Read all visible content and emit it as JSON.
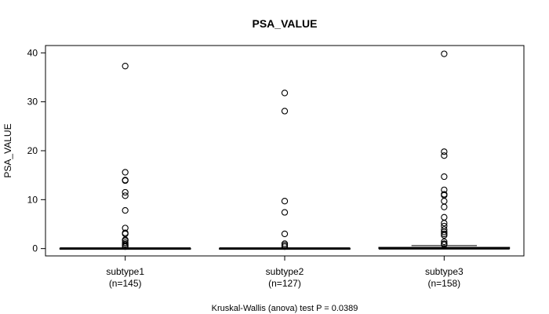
{
  "chart_data": {
    "type": "box",
    "title": "PSA_VALUE",
    "ylabel": "PSA_VALUE",
    "xlabel": "",
    "ylim": [
      -1.5,
      41.5
    ],
    "yticks": [
      0,
      10,
      20,
      30,
      40
    ],
    "ytick_labels": [
      "0",
      "10",
      "20",
      "30",
      "40"
    ],
    "footer": "Kruskal-Wallis (anova) test P = 0.0389",
    "groups": [
      {
        "name": "subtype1",
        "n_label": "(n=145)",
        "box": {
          "q1": 0.0,
          "median": 0.0,
          "q3": 0.05,
          "whisker_low": 0.0,
          "whisker_high": 0.1
        },
        "outliers": [
          37.3,
          15.6,
          14.0,
          13.9,
          11.5,
          10.8,
          7.8,
          4.2,
          3.2,
          3.0,
          1.8,
          1.6,
          1.2,
          0.9,
          0.6,
          0.4
        ]
      },
      {
        "name": "subtype2",
        "n_label": "(n=127)",
        "box": {
          "q1": 0.0,
          "median": 0.0,
          "q3": 0.05,
          "whisker_low": 0.0,
          "whisker_high": 0.1
        },
        "outliers": [
          31.8,
          28.1,
          9.7,
          7.4,
          3.0,
          1.0,
          0.7,
          0.4
        ]
      },
      {
        "name": "subtype3",
        "n_label": "(n=158)",
        "box": {
          "q1": 0.0,
          "median": 0.05,
          "q3": 0.25,
          "whisker_low": 0.0,
          "whisker_high": 0.6
        },
        "outliers": [
          39.8,
          19.8,
          19.0,
          14.7,
          12.0,
          11.1,
          10.9,
          9.7,
          8.5,
          6.4,
          5.2,
          4.6,
          3.9,
          3.4,
          3.0,
          2.7,
          1.4,
          1.0,
          0.8
        ]
      }
    ]
  }
}
